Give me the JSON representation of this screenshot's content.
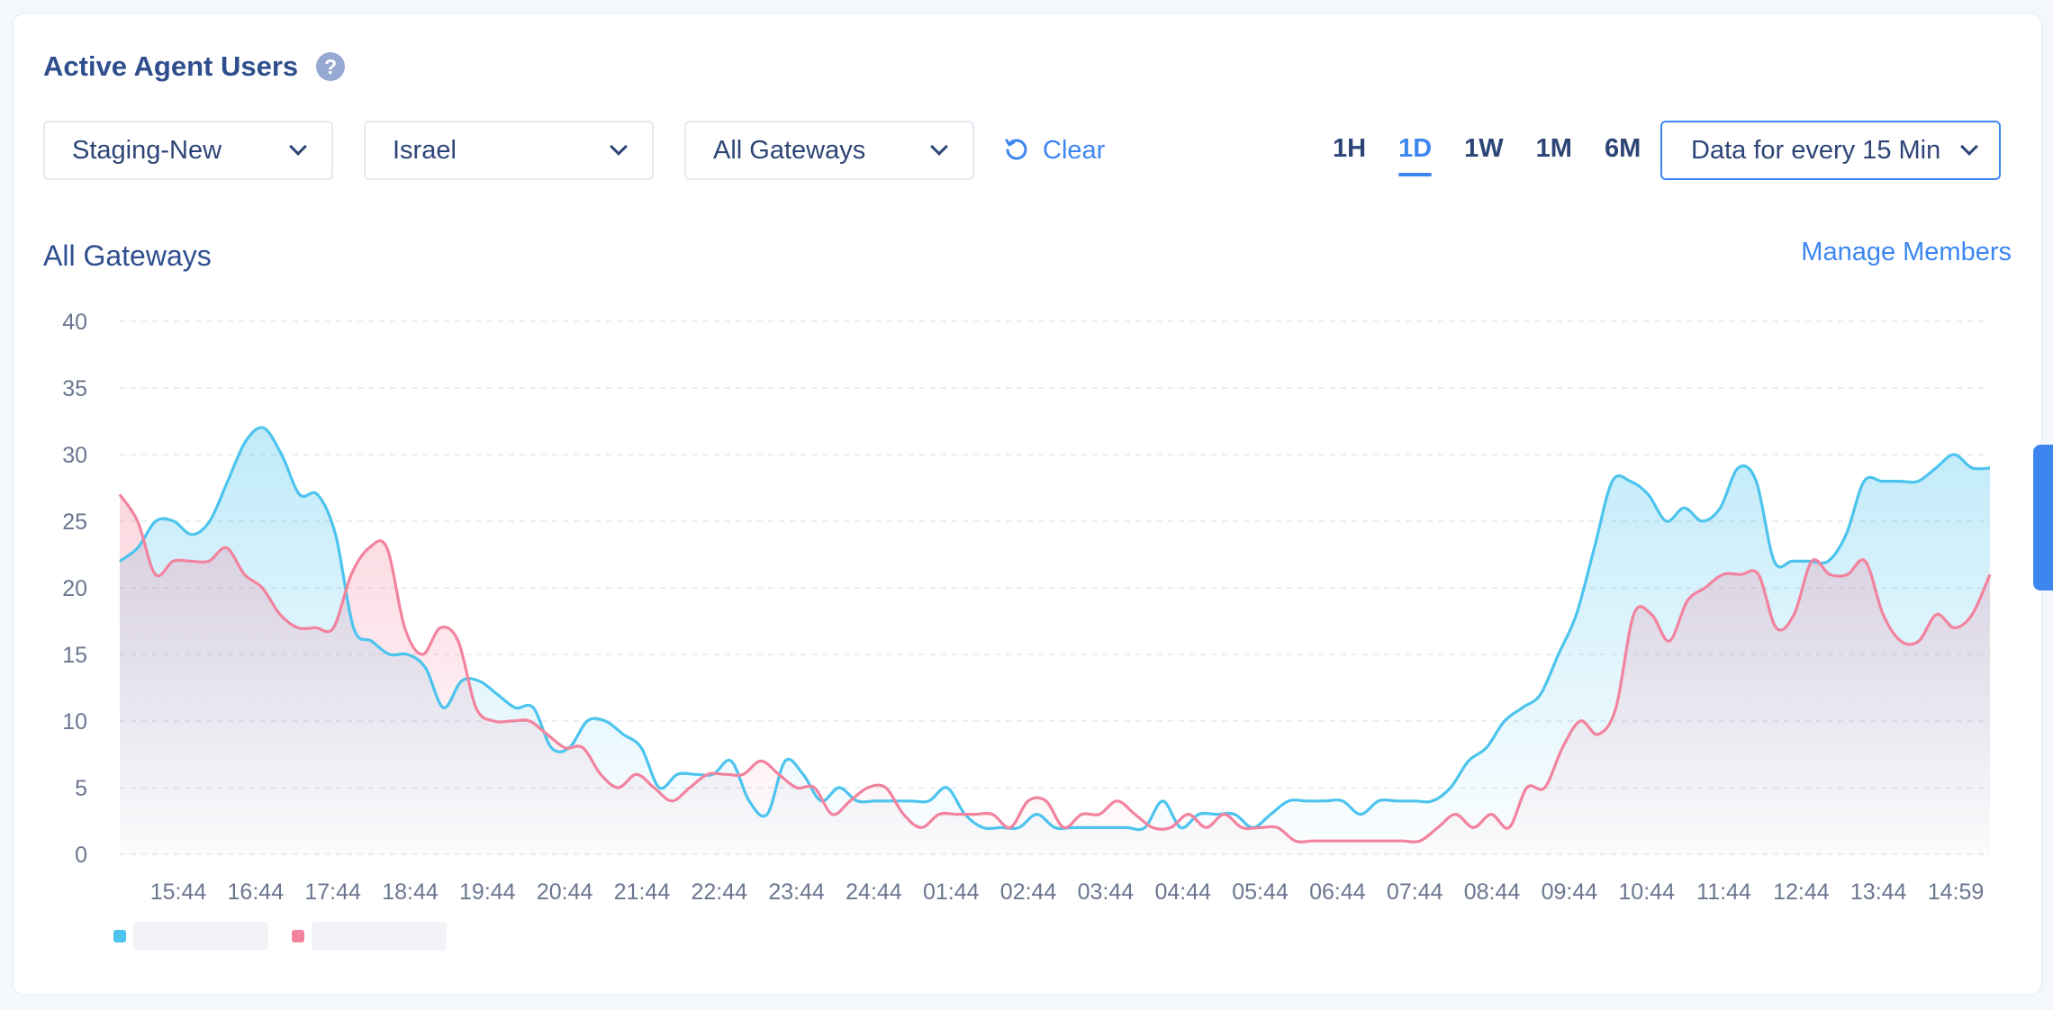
{
  "header": {
    "title": "Active Agent Users",
    "help_icon": "question-icon"
  },
  "filters": {
    "environment": "Staging-New",
    "region": "Israel",
    "gateway": "All Gateways",
    "clear_label": "Clear"
  },
  "time_ranges": [
    {
      "label": "1H",
      "active": false
    },
    {
      "label": "1D",
      "active": true
    },
    {
      "label": "1W",
      "active": false
    },
    {
      "label": "1M",
      "active": false
    },
    {
      "label": "6M",
      "active": false
    }
  ],
  "interval_label": "Data for every 15 Min",
  "section_title": "All Gateways",
  "manage_members_label": "Manage Members",
  "colors": {
    "accent": "#3d86f0",
    "series_a": "#4cc4ee",
    "series_b": "#f2839e"
  },
  "chart_data": {
    "type": "area",
    "ylim": [
      0,
      40
    ],
    "yticks": [
      0,
      5,
      10,
      15,
      20,
      25,
      30,
      35,
      40
    ],
    "xticks": [
      "15:44",
      "16:44",
      "17:44",
      "18:44",
      "19:44",
      "20:44",
      "21:44",
      "22:44",
      "23:44",
      "24:44",
      "01:44",
      "02:44",
      "03:44",
      "04:44",
      "05:44",
      "06:44",
      "07:44",
      "08:44",
      "09:44",
      "10:44",
      "11:44",
      "12:44",
      "13:44",
      "14:59"
    ],
    "grid": true,
    "legend_position": "bottom-left",
    "series": [
      {
        "color": "#4cc4ee",
        "values": [
          22,
          23,
          25,
          25,
          24,
          25,
          28,
          31,
          32,
          30,
          27,
          27,
          24,
          17,
          16,
          15,
          15,
          14,
          11,
          13,
          13,
          12,
          11,
          11,
          8,
          8,
          10,
          10,
          9,
          8,
          5,
          6,
          6,
          6,
          7,
          4,
          3,
          7,
          6,
          4,
          5,
          4,
          4,
          4,
          4,
          4,
          5,
          3,
          2,
          2,
          2,
          3,
          2,
          2,
          2,
          2,
          2,
          2,
          4,
          2,
          3,
          3,
          3,
          2,
          3,
          4,
          4,
          4,
          4,
          3,
          4,
          4,
          4,
          4,
          5,
          7,
          8,
          10,
          11,
          12,
          15,
          18,
          23,
          28,
          28,
          27,
          25,
          26,
          25,
          26,
          29,
          28,
          22,
          22,
          22,
          22,
          24,
          28,
          28,
          28,
          28,
          29,
          30,
          29,
          29
        ]
      },
      {
        "color": "#f2839e",
        "values": [
          27,
          25,
          21,
          22,
          22,
          22,
          23,
          21,
          20,
          18,
          17,
          17,
          17,
          21,
          23,
          23,
          17,
          15,
          17,
          16,
          11,
          10,
          10,
          10,
          9,
          8,
          8,
          6,
          5,
          6,
          5,
          4,
          5,
          6,
          6,
          6,
          7,
          6,
          5,
          5,
          3,
          4,
          5,
          5,
          3,
          2,
          3,
          3,
          3,
          3,
          2,
          4,
          4,
          2,
          3,
          3,
          4,
          3,
          2,
          2,
          3,
          2,
          3,
          2,
          2,
          2,
          1,
          1,
          1,
          1,
          1,
          1,
          1,
          1,
          2,
          3,
          2,
          3,
          2,
          5,
          5,
          8,
          10,
          9,
          11,
          18,
          18,
          16,
          19,
          20,
          21,
          21,
          21,
          17,
          18,
          22,
          21,
          21,
          22,
          18,
          16,
          16,
          18,
          17,
          18,
          21
        ]
      }
    ]
  }
}
